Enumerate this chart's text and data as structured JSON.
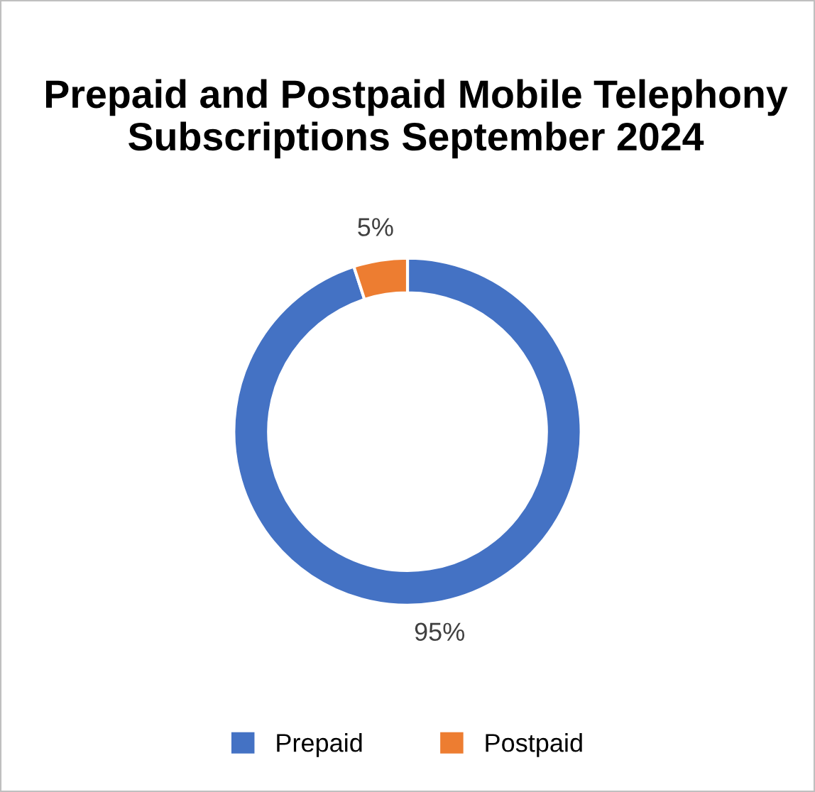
{
  "chart_data": {
    "type": "donut",
    "title": "Prepaid and Postpaid Mobile Telephony Subscriptions September 2024",
    "categories": [
      "Prepaid",
      "Postpaid"
    ],
    "values": [
      95,
      5
    ],
    "colors": [
      "#4472c4",
      "#ed7d31"
    ],
    "value_labels": [
      "95%",
      "5%"
    ],
    "legend": "bottom"
  }
}
